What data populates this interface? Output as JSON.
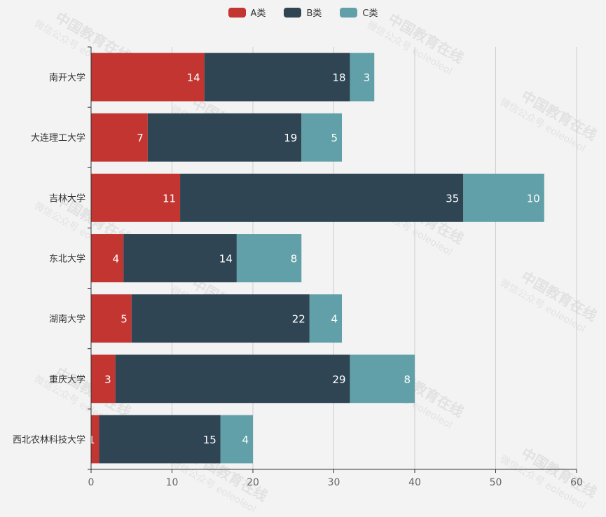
{
  "legend": [
    {
      "name": "A类",
      "color": "#c23531"
    },
    {
      "name": "B类",
      "color": "#2f4554"
    },
    {
      "name": "C类",
      "color": "#61a0a8"
    }
  ],
  "watermark": {
    "line1": "中国教育在线",
    "line2": "微信公众号 eoleoleol"
  },
  "chart_data": {
    "type": "bar",
    "orientation": "horizontal",
    "stacked": true,
    "categories": [
      "南开大学",
      "大连理工大学",
      "吉林大学",
      "东北大学",
      "湖南大学",
      "重庆大学",
      "西北农林科技大学"
    ],
    "series": [
      {
        "name": "A类",
        "color": "#c23531",
        "values": [
          14,
          7,
          11,
          4,
          5,
          3,
          1
        ]
      },
      {
        "name": "B类",
        "color": "#2f4554",
        "values": [
          18,
          19,
          35,
          14,
          22,
          29,
          15
        ]
      },
      {
        "name": "C类",
        "color": "#61a0a8",
        "values": [
          3,
          5,
          10,
          8,
          4,
          8,
          4
        ]
      }
    ],
    "xlim": [
      0,
      60
    ],
    "xticks": [
      0,
      10,
      20,
      30,
      40,
      50,
      60
    ],
    "title": "",
    "xlabel": "",
    "ylabel": "",
    "grid": true,
    "legend_position": "top-center",
    "data_labels": true
  }
}
